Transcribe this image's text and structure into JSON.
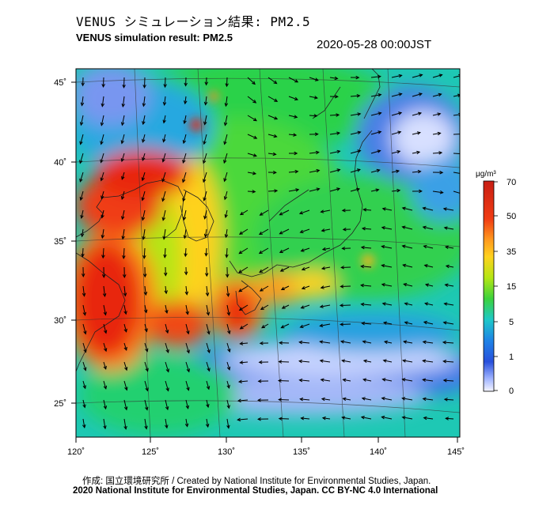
{
  "header": {
    "title_jp": "VENUS シミュレーション結果: PM2.5",
    "title_en": "VENUS simulation result: PM2.5",
    "timestamp": "2020-05-28 00:00JST"
  },
  "map": {
    "lon_ticks": [
      "120˚",
      "125˚",
      "130˚",
      "135˚",
      "140˚",
      "145˚"
    ],
    "lat_ticks": [
      "45˚",
      "40˚",
      "35˚",
      "30˚",
      "25˚"
    ],
    "lon_range": [
      120,
      145
    ],
    "lat_range": [
      23,
      46
    ]
  },
  "legend": {
    "unit": "μg/m³",
    "labels": [
      "70",
      "50",
      "35",
      "15",
      "5",
      "1",
      "0"
    ],
    "colors": [
      "#c81e14",
      "#f03c14",
      "#ff8c1e",
      "#ffd21e",
      "#b4e614",
      "#3cd23c",
      "#1ec8c8",
      "#1e82e6",
      "#2850dc",
      "#a0b4ff",
      "#f0f0ff"
    ]
  },
  "footer": {
    "credit_jp": "作成: 国立環境研究所 / Created by National Institute for Environmental Studies, Japan.",
    "copyright": "2020 National Institute for Environmental Studies, Japan. CC BY-NC 4.0 International"
  }
}
